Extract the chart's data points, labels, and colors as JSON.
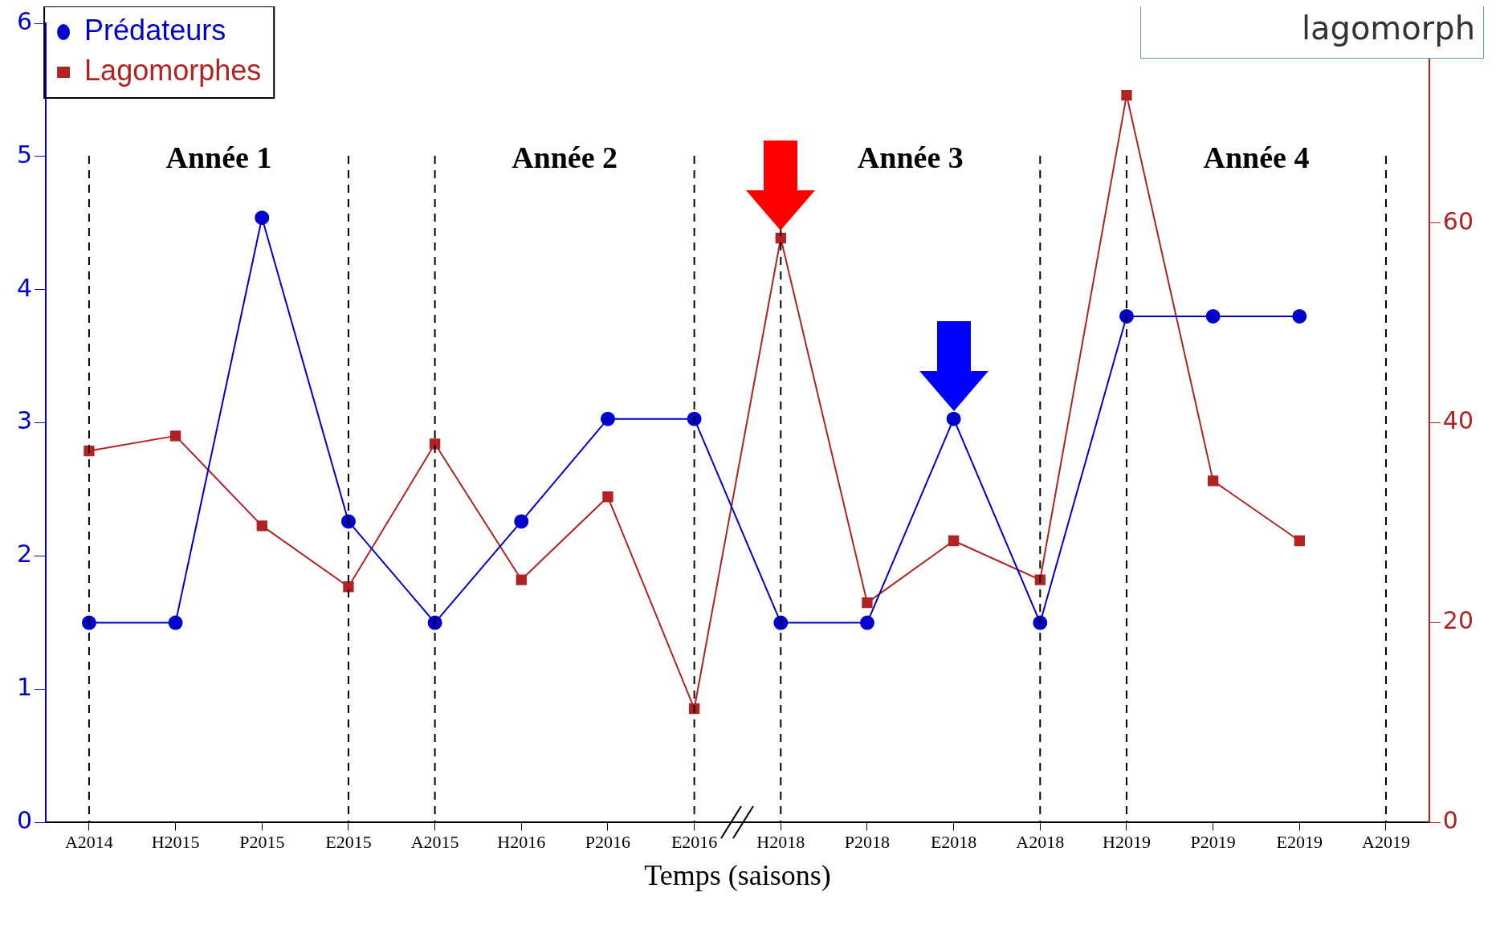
{
  "chart_data": {
    "type": "line",
    "xlabel": "Temps (saisons)",
    "categories": [
      "A2014",
      "H2015",
      "P2015",
      "E2015",
      "A2015",
      "H2016",
      "P2016",
      "E2016",
      "H2018",
      "P2018",
      "E2018",
      "A2018",
      "H2019",
      "P2019",
      "E2019",
      "A2019"
    ],
    "series": [
      {
        "name": "Prédateurs",
        "color": "#0000cc",
        "marker": "circle",
        "values": [
          1.5,
          1.5,
          4.54,
          2.26,
          1.5,
          2.26,
          3.03,
          3.03,
          1.5,
          1.5,
          3.03,
          1.5,
          3.8,
          3.8,
          3.8,
          null
        ]
      },
      {
        "name": "Lagomorphes",
        "color": "#b22222",
        "marker": "square",
        "axis": "y2",
        "values": [
          37.2,
          38.7,
          29.7,
          23.6,
          37.9,
          24.3,
          32.6,
          11.4,
          58.5,
          22.0,
          28.2,
          24.3,
          72.8,
          34.2,
          28.2,
          null
        ]
      }
    ],
    "ylim": [
      0,
      6
    ],
    "yticks": [
      0,
      1,
      2,
      3,
      4,
      5,
      6
    ],
    "y2lim": [
      0,
      80
    ],
    "y2ticks": [
      0,
      20,
      40,
      60
    ],
    "ref_lines": [
      {
        "axis": "x",
        "value": "A2014",
        "line_style": "dashed",
        "color": "#000000"
      },
      {
        "axis": "x",
        "value": "E2015",
        "line_style": "dashed",
        "color": "#000000"
      },
      {
        "axis": "x",
        "value": "A2015",
        "line_style": "dashed",
        "color": "#000000"
      },
      {
        "axis": "x",
        "value": "E2016",
        "line_style": "dashed",
        "color": "#000000"
      },
      {
        "axis": "x",
        "value": "H2018",
        "line_style": "dashed",
        "color": "#000000"
      },
      {
        "axis": "x",
        "value": "A2018",
        "line_style": "dashed",
        "color": "#000000"
      },
      {
        "axis": "x",
        "value": "H2019",
        "line_style": "dashed",
        "color": "#000000"
      },
      {
        "axis": "x",
        "value": "A2019",
        "line_style": "dashed",
        "color": "#000000"
      }
    ],
    "annotations": [
      "Année 1",
      "Année 2",
      "Année 3",
      "Année 4",
      "lagomorph"
    ],
    "grid": false,
    "legend": "top left",
    "line_style": "solid"
  }
}
